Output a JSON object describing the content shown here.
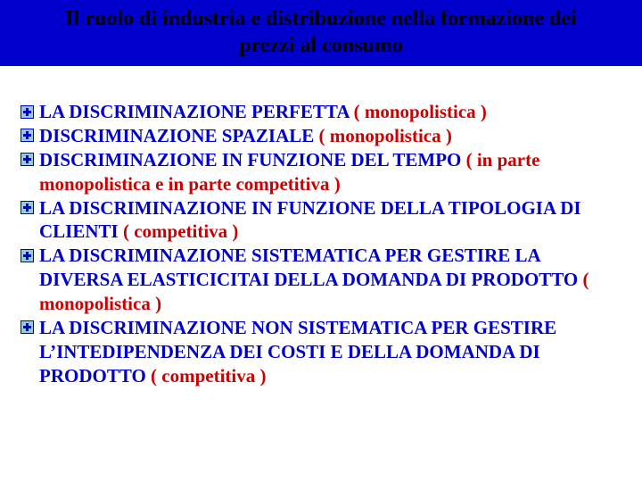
{
  "header": {
    "line1": "Il ruolo di industria e distribuzione nella formazione dei",
    "line2": "prezzi al consumo"
  },
  "items": [
    {
      "segments": [
        {
          "text": "LA DISCRIMINAZIONE PERFETTA  ",
          "color": "blue"
        },
        {
          "text": "( monopolistica )",
          "color": "red"
        }
      ]
    },
    {
      "segments": [
        {
          "text": " DISCRIMINAZIONE SPAZIALE ",
          "color": "blue"
        },
        {
          "text": "( monopolistica )",
          "color": "red"
        }
      ]
    },
    {
      "segments": [
        {
          "text": "DISCRIMINAZIONE IN FUNZIONE  DEL   TEMPO ",
          "color": "blue"
        },
        {
          "text": "( in parte monopolistica e in parte competitiva  )",
          "color": "red"
        }
      ]
    },
    {
      "segments": [
        {
          "text": "LA DISCRIMINAZIONE IN FUNZIONE DELLA TIPOLOGIA DI CLIENTI ",
          "color": "blue"
        },
        {
          "text": "(  competitiva )",
          "color": "red"
        }
      ]
    },
    {
      "segments": [
        {
          "text": "LA DISCRIMINAZIONE SISTEMATICA  PER GESTIRE LA DIVERSA ELASTICICITAI DELLA DOMANDA DI PRODOTTO   ",
          "color": "blue"
        },
        {
          "text": "( monopolistica )",
          "color": "red"
        }
      ]
    },
    {
      "segments": [
        {
          "text": "LA DISCRIMINAZIONE  NON SISTEMATICA   PER GESTIRE  L’INTEDIPENDENZA DEI COSTI E DELLA DOMANDA DI PRODOTTO     ",
          "color": "blue"
        },
        {
          "text": "( competitiva )",
          "color": "red"
        }
      ]
    }
  ],
  "colors": {
    "header_bg": "#0000cc",
    "blue": "#0000cc",
    "red": "#cc0000",
    "bullet_fill": "#93cddd",
    "bullet_stroke": "#0000cc"
  },
  "bullet_icon": "plus-box-icon"
}
